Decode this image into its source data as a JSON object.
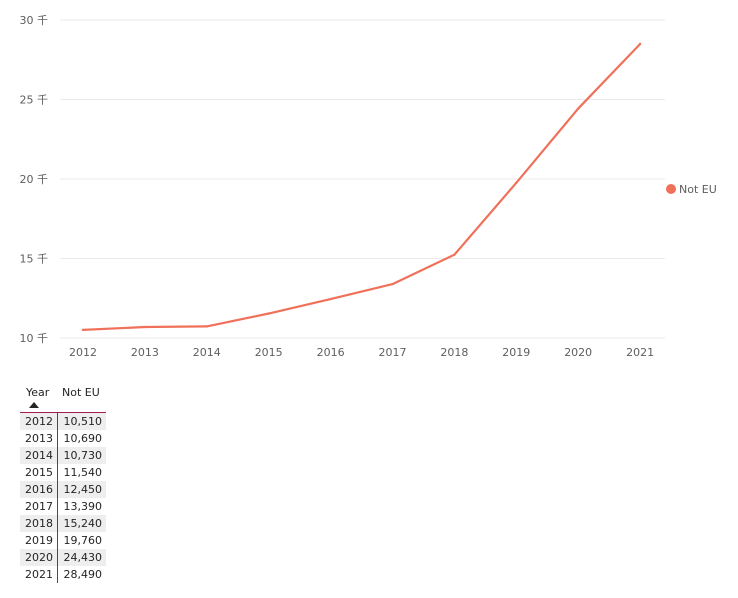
{
  "chart_data": {
    "type": "line",
    "x": [
      "2012",
      "2013",
      "2014",
      "2015",
      "2016",
      "2017",
      "2018",
      "2019",
      "2020",
      "2021"
    ],
    "series": [
      {
        "name": "Not EU",
        "values": [
          10510,
          10690,
          10730,
          11540,
          12450,
          13390,
          15240,
          19760,
          24430,
          28490
        ],
        "color": "#f0705a"
      }
    ],
    "y_ticks": [
      "10 千",
      "15 千",
      "20 千",
      "25 千",
      "30 千"
    ],
    "y_tick_values": [
      10000,
      15000,
      20000,
      25000,
      30000
    ],
    "ylim": [
      10000,
      30000
    ],
    "grid": true,
    "legend_position": "right"
  },
  "table": {
    "headers": {
      "year": "Year",
      "value": "Not EU"
    },
    "rows": [
      {
        "year": "2012",
        "value": "10,510"
      },
      {
        "year": "2013",
        "value": "10,690"
      },
      {
        "year": "2014",
        "value": "10,730"
      },
      {
        "year": "2015",
        "value": "11,540"
      },
      {
        "year": "2016",
        "value": "12,450"
      },
      {
        "year": "2017",
        "value": "13,390"
      },
      {
        "year": "2018",
        "value": "15,240"
      },
      {
        "year": "2019",
        "value": "19,760"
      },
      {
        "year": "2020",
        "value": "24,430"
      },
      {
        "year": "2021",
        "value": "28,490"
      }
    ]
  }
}
